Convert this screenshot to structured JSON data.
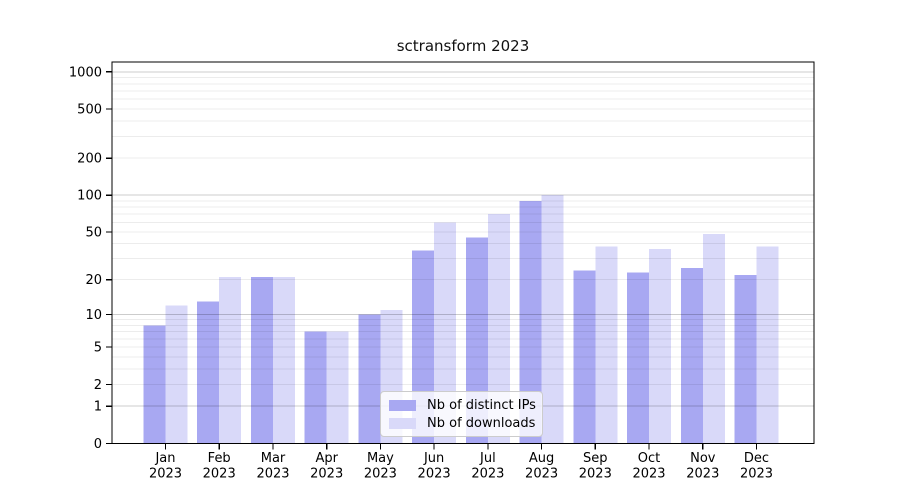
{
  "title": "sctransform 2023",
  "chart_data": {
    "type": "bar",
    "title": "sctransform 2023",
    "categories": [
      "Jan 2023",
      "Feb 2023",
      "Mar 2023",
      "Apr 2023",
      "May 2023",
      "Jun 2023",
      "Jul 2023",
      "Aug 2023",
      "Sep 2023",
      "Oct 2023",
      "Nov 2023",
      "Dec 2023"
    ],
    "series": [
      {
        "name": "Nb of distinct IPs",
        "color": "#a8a8f2",
        "values": [
          8,
          13,
          21,
          7,
          10,
          35,
          45,
          90,
          24,
          23,
          25,
          22
        ]
      },
      {
        "name": "Nb of downloads",
        "color": "#d9d9f9",
        "values": [
          12,
          21,
          21,
          7,
          11,
          60,
          70,
          100,
          38,
          36,
          48,
          38
        ]
      }
    ],
    "xlabel": "",
    "ylabel": "",
    "yticks": [
      0,
      1,
      2,
      5,
      10,
      20,
      50,
      100,
      200,
      500,
      1000
    ],
    "yscale": "log10(1+x)",
    "ylim": [
      0,
      1200
    ],
    "grid": "horizontal major+minor",
    "legend_position": "inside lower center",
    "colors": {
      "background": "#ffffff",
      "axis": "#000000",
      "major_grid": "#cccccc",
      "minor_grid": "#ececec",
      "tick_label": "#000000"
    }
  },
  "legend": {
    "items": [
      {
        "label": "Nb of distinct IPs",
        "color": "#a8a8f2"
      },
      {
        "label": "Nb of downloads",
        "color": "#d9d9f9"
      }
    ]
  }
}
